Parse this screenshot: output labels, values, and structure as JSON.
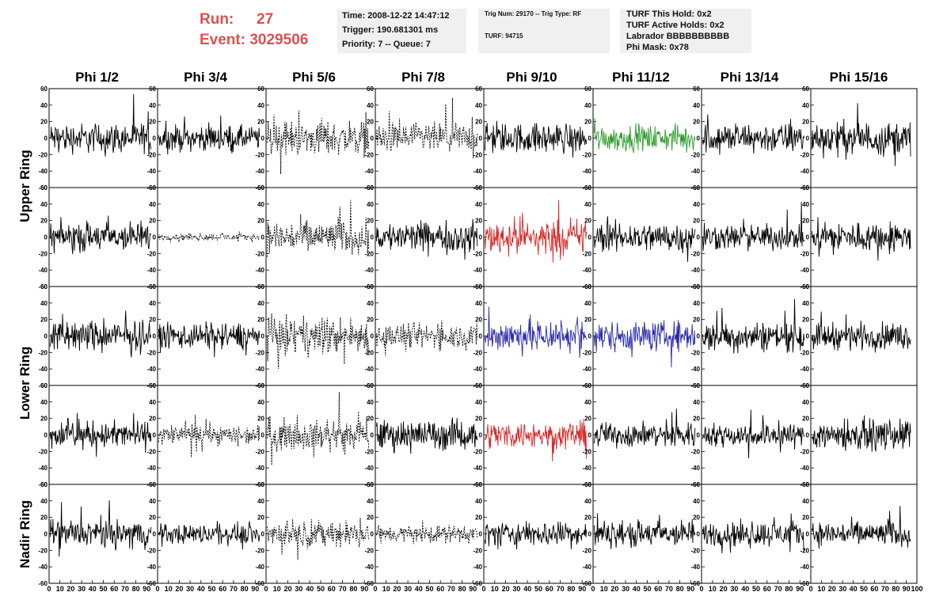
{
  "header": {
    "run_label": "Run:",
    "run_value": "27",
    "event_label": "Event:",
    "event_value": "3029506"
  },
  "info_box_1": {
    "time": "Time: 2008-12-22 14:47:12",
    "trigger": "Trigger: 190.681301 ms",
    "priority": "Priority: 7 -- Queue: 7"
  },
  "info_box_2": {
    "trig_line": "Trig Num: 29170 -- Trig Type: RF",
    "turf_line": "TURF: 94715"
  },
  "info_box_3": {
    "this_hold": "TURF This Hold: 0x2",
    "active_holds": "TURF Active Holds: 0x2",
    "labrador": "Labrador BBBBBBBBBB",
    "phi_mask": "Phi Mask: 0x78"
  },
  "columns": [
    "Phi 1/2",
    "Phi 3/4",
    "Phi 5/6",
    "Phi 7/8",
    "Phi 9/10",
    "Phi 11/12",
    "Phi 13/14",
    "Phi 15/16"
  ],
  "ring_labels": {
    "upper": "Upper Ring",
    "lower": "Lower Ring",
    "nadir": "Nadir Ring"
  },
  "chart_data": {
    "type": "line",
    "ylim": [
      -60,
      60
    ],
    "xlim": [
      0,
      100
    ],
    "y_ticks": [
      -60,
      -40,
      -20,
      0,
      20,
      40,
      60
    ],
    "x_tick_labels": [
      "0",
      "10",
      "20",
      "30",
      "40",
      "50",
      "60",
      "70",
      "80",
      "90",
      "100"
    ],
    "rows": 5,
    "cols": 8,
    "dashed_panels": [
      [
        0,
        2
      ],
      [
        0,
        3
      ],
      [
        1,
        1
      ],
      [
        1,
        2
      ],
      [
        2,
        2
      ],
      [
        2,
        3
      ],
      [
        3,
        1
      ],
      [
        3,
        2
      ],
      [
        4,
        2
      ],
      [
        4,
        3
      ]
    ],
    "colored_panels": [
      {
        "row": 0,
        "col": 5,
        "color": "#2a9a2a"
      },
      {
        "row": 1,
        "col": 4,
        "color": "#d62828"
      },
      {
        "row": 2,
        "col": 4,
        "color": "#2a2aa8"
      },
      {
        "row": 2,
        "col": 5,
        "color": "#2a2aa8"
      },
      {
        "row": 3,
        "col": 4,
        "color": "#d62828"
      }
    ],
    "amplitudes": [
      [
        18,
        15,
        20,
        18,
        18,
        15,
        18,
        20
      ],
      [
        18,
        4,
        20,
        18,
        22,
        18,
        15,
        18
      ],
      [
        18,
        16,
        22,
        15,
        20,
        18,
        18,
        16
      ],
      [
        16,
        12,
        18,
        18,
        16,
        15,
        14,
        18
      ],
      [
        16,
        12,
        15,
        10,
        15,
        16,
        15,
        15
      ]
    ]
  }
}
